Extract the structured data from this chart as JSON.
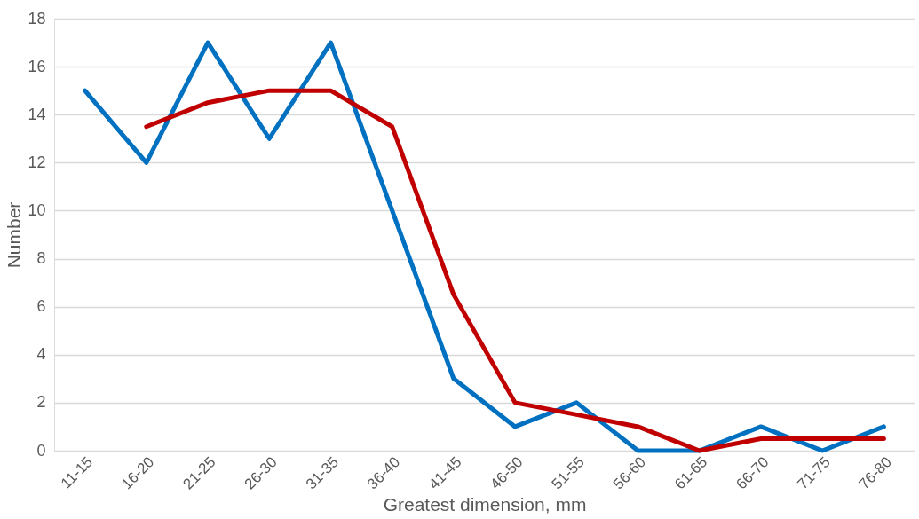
{
  "chart_data": {
    "type": "line",
    "xlabel": "Greatest dimension, mm",
    "ylabel": "Number",
    "categories": [
      "11-15",
      "16-20",
      "21-25",
      "26-30",
      "31-35",
      "36-40",
      "41-45",
      "46-50",
      "51-55",
      "56-60",
      "61-65",
      "66-70",
      "71-75",
      "76-80"
    ],
    "series": [
      {
        "color": "#0070c0",
        "values": [
          15,
          12,
          17,
          13,
          17,
          10,
          3,
          1,
          2,
          0,
          0,
          1,
          0,
          1
        ]
      },
      {
        "color": "#c00000",
        "values": [
          null,
          13.5,
          14.5,
          15,
          15,
          13.5,
          6.5,
          2,
          1.5,
          1,
          0,
          0.5,
          0.5,
          0.5
        ]
      }
    ],
    "ylim": [
      0,
      18
    ],
    "yticks": [
      0,
      2,
      4,
      6,
      8,
      10,
      12,
      14,
      16,
      18
    ],
    "grid": "y",
    "marker": "none",
    "line_style": "solid"
  }
}
